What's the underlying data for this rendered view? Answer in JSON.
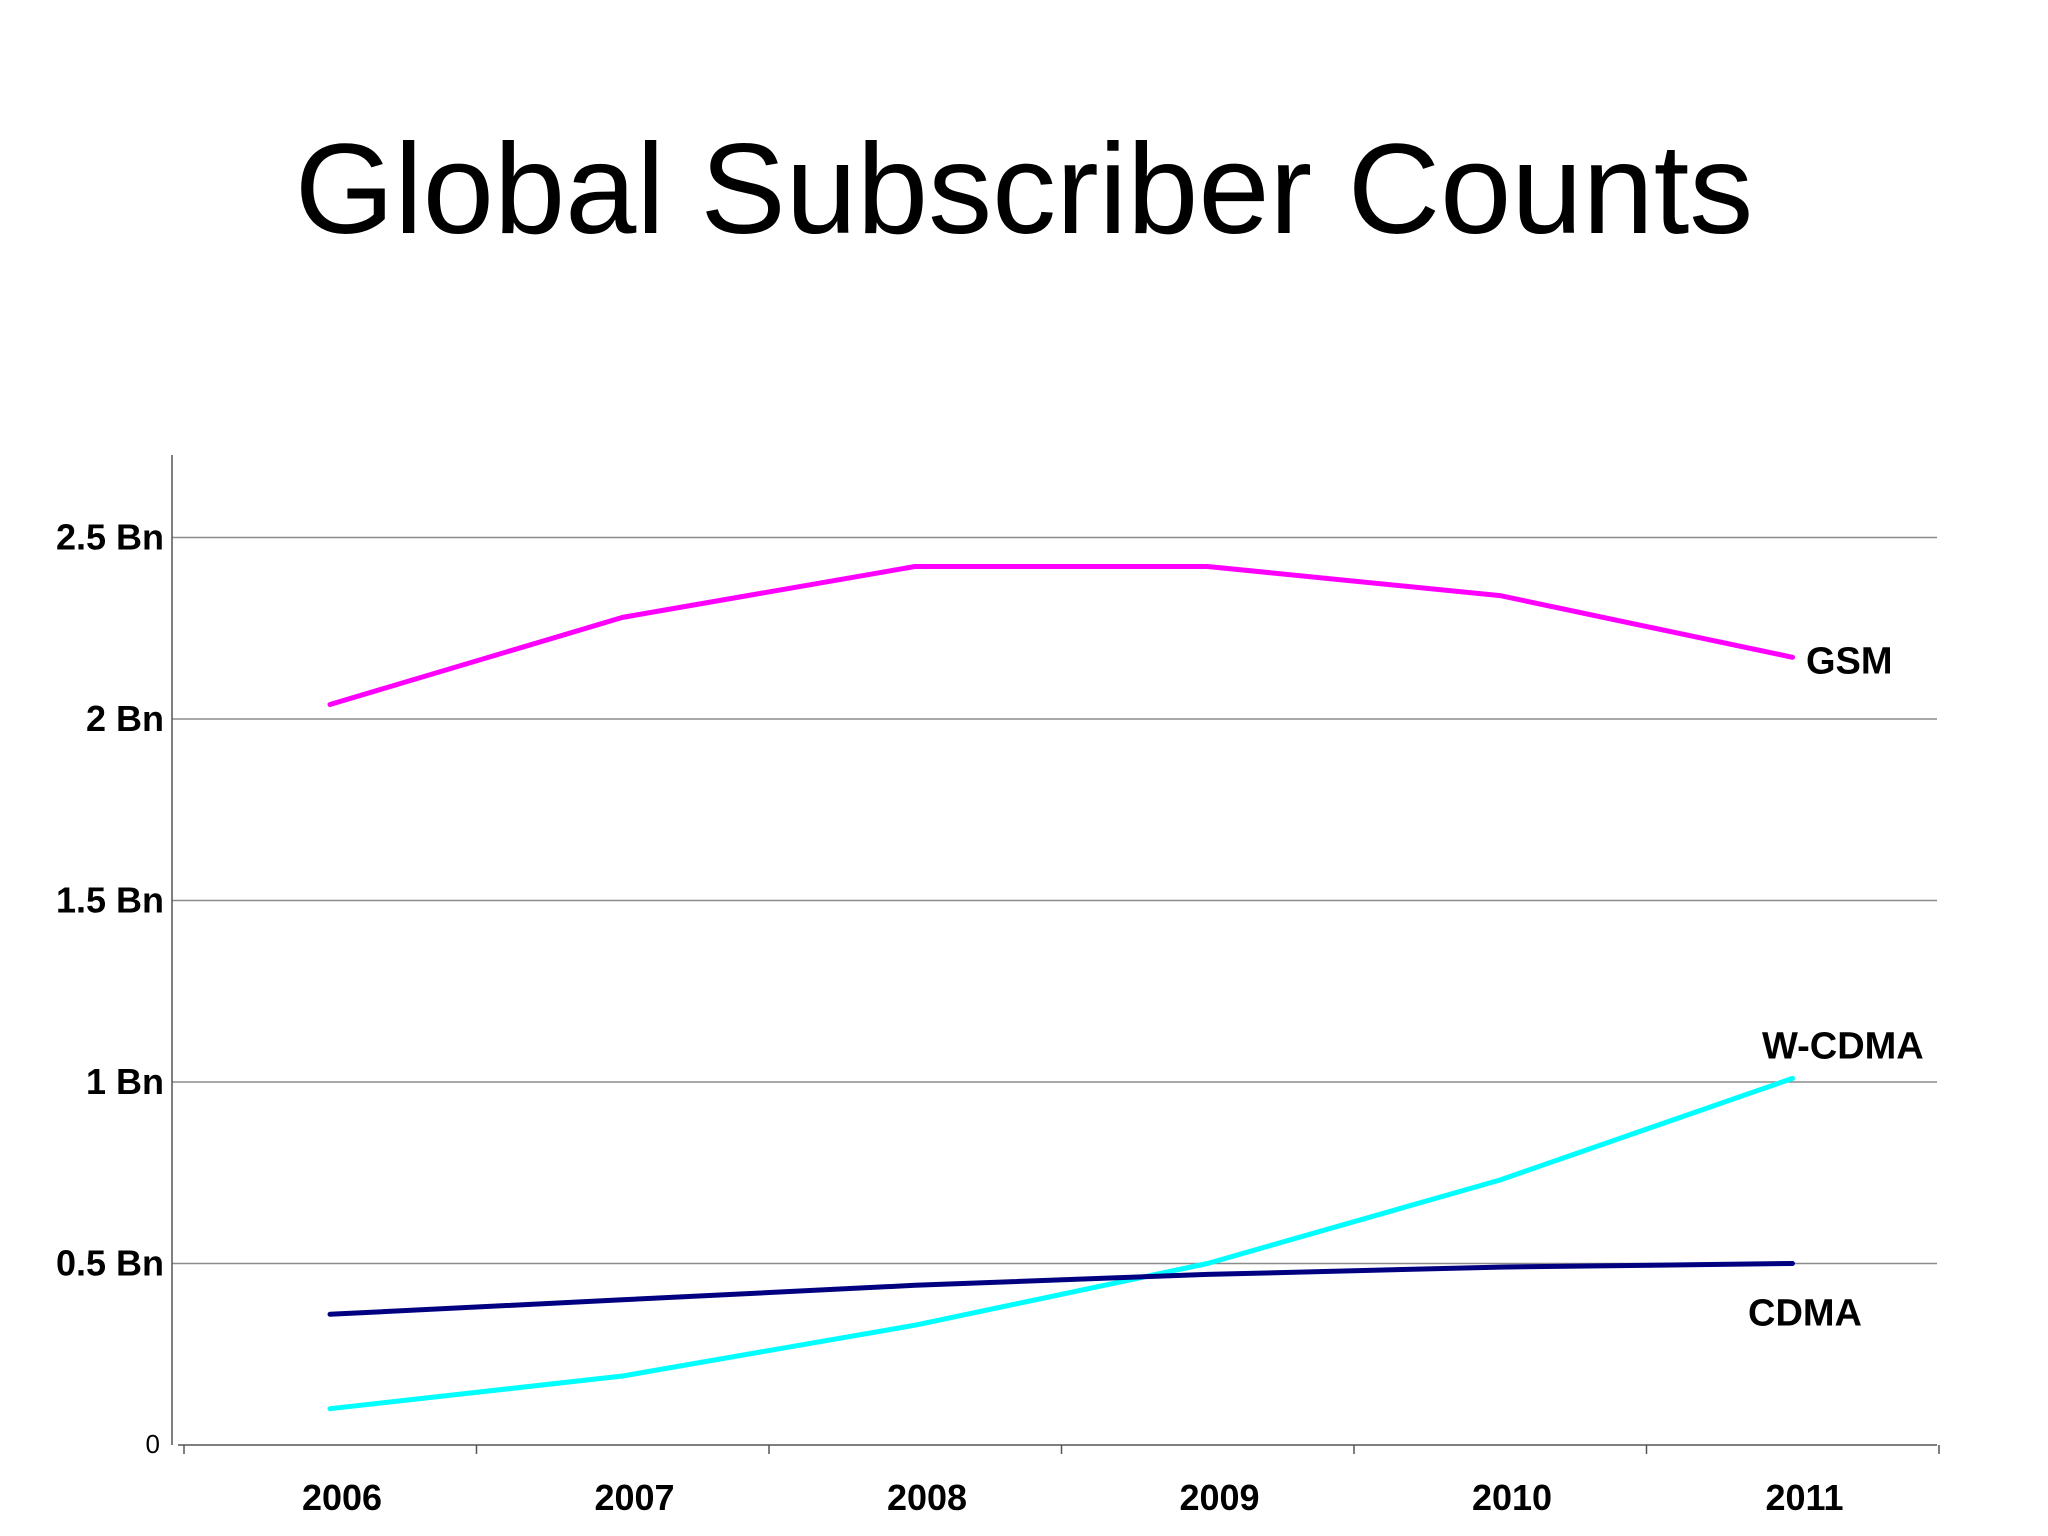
{
  "title": "Global Subscriber Counts",
  "chart_data": {
    "type": "line",
    "title": "Global Subscriber Counts",
    "xlabel": "",
    "ylabel": "",
    "categories": [
      "2006",
      "2007",
      "2008",
      "2009",
      "2010",
      "2011"
    ],
    "ylim": [
      0,
      2.73
    ],
    "y_ticks": [
      0,
      0.5,
      1,
      1.5,
      2,
      2.5
    ],
    "y_tick_labels": [
      "0",
      "0.5 Bn",
      "1 Bn",
      "1.5 Bn",
      "2 Bn",
      "2.5 Bn"
    ],
    "grid": "horizontal",
    "legend": "none",
    "series": [
      {
        "name": "GSM",
        "color": "#ff00ff",
        "values": [
          2.04,
          2.28,
          2.42,
          2.42,
          2.34,
          2.17
        ]
      },
      {
        "name": "W-CDMA",
        "color": "#00ffff",
        "values": [
          0.1,
          0.19,
          0.33,
          0.5,
          0.73,
          1.01
        ]
      },
      {
        "name": "CDMA",
        "color": "#000080",
        "values": [
          0.36,
          0.4,
          0.44,
          0.47,
          0.49,
          0.5
        ]
      }
    ]
  }
}
